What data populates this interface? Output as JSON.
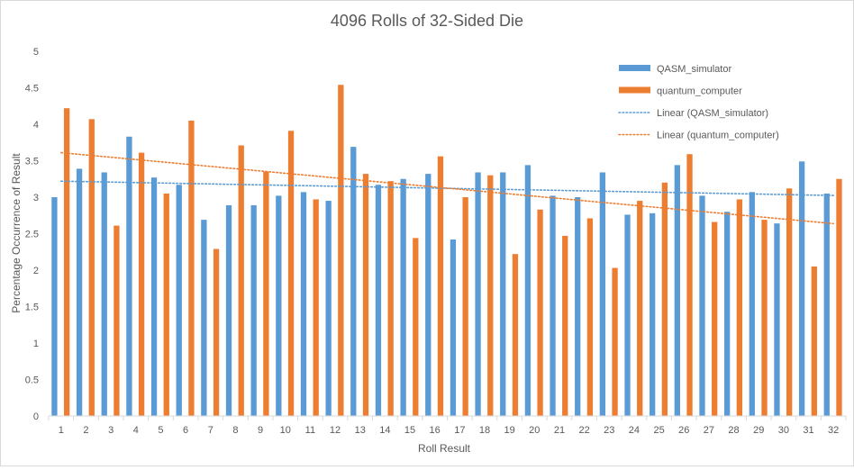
{
  "chart_data": {
    "type": "bar",
    "title": "4096 Rolls of 32-Sided Die",
    "xlabel": "Roll Result",
    "ylabel": "Percentage Occurrence of Result",
    "ylim": [
      0,
      5
    ],
    "ytick_step": 0.5,
    "yticks": [
      "0",
      "0.5",
      "1",
      "1.5",
      "2",
      "2.5",
      "3",
      "3.5",
      "4",
      "4.5",
      "5"
    ],
    "grid": false,
    "legend_position": "top-right",
    "categories": [
      "1",
      "2",
      "3",
      "4",
      "5",
      "6",
      "7",
      "8",
      "9",
      "10",
      "11",
      "12",
      "13",
      "14",
      "15",
      "16",
      "17",
      "18",
      "19",
      "20",
      "21",
      "22",
      "23",
      "24",
      "25",
      "26",
      "27",
      "28",
      "29",
      "30",
      "31",
      "32"
    ],
    "series": [
      {
        "name": "QASM_simulator",
        "color": "#5b9bd5",
        "values": [
          3.0,
          3.39,
          3.34,
          3.83,
          3.27,
          3.17,
          2.69,
          2.89,
          2.89,
          3.02,
          3.07,
          2.95,
          3.69,
          3.17,
          3.25,
          3.32,
          2.42,
          3.34,
          3.34,
          3.44,
          3.02,
          3.0,
          3.34,
          2.76,
          2.78,
          3.44,
          3.02,
          2.8,
          3.07,
          2.64,
          3.49,
          3.05
        ]
      },
      {
        "name": "quantum_computer",
        "color": "#ed7d31",
        "values": [
          4.22,
          4.07,
          2.61,
          3.61,
          3.05,
          4.05,
          2.29,
          3.71,
          3.35,
          3.91,
          2.97,
          4.54,
          3.32,
          3.22,
          2.44,
          3.56,
          3.0,
          3.3,
          2.22,
          2.83,
          2.47,
          2.71,
          2.03,
          2.95,
          3.2,
          3.59,
          2.66,
          2.97,
          2.69,
          3.12,
          2.05,
          3.25
        ]
      }
    ],
    "trendlines": [
      {
        "name": "Linear (QASM_simulator)",
        "color": "#5b9bd5",
        "series": 0,
        "style": "dotted"
      },
      {
        "name": "Linear (quantum_computer)",
        "color": "#ed7d31",
        "series": 1,
        "style": "dotted"
      }
    ]
  }
}
